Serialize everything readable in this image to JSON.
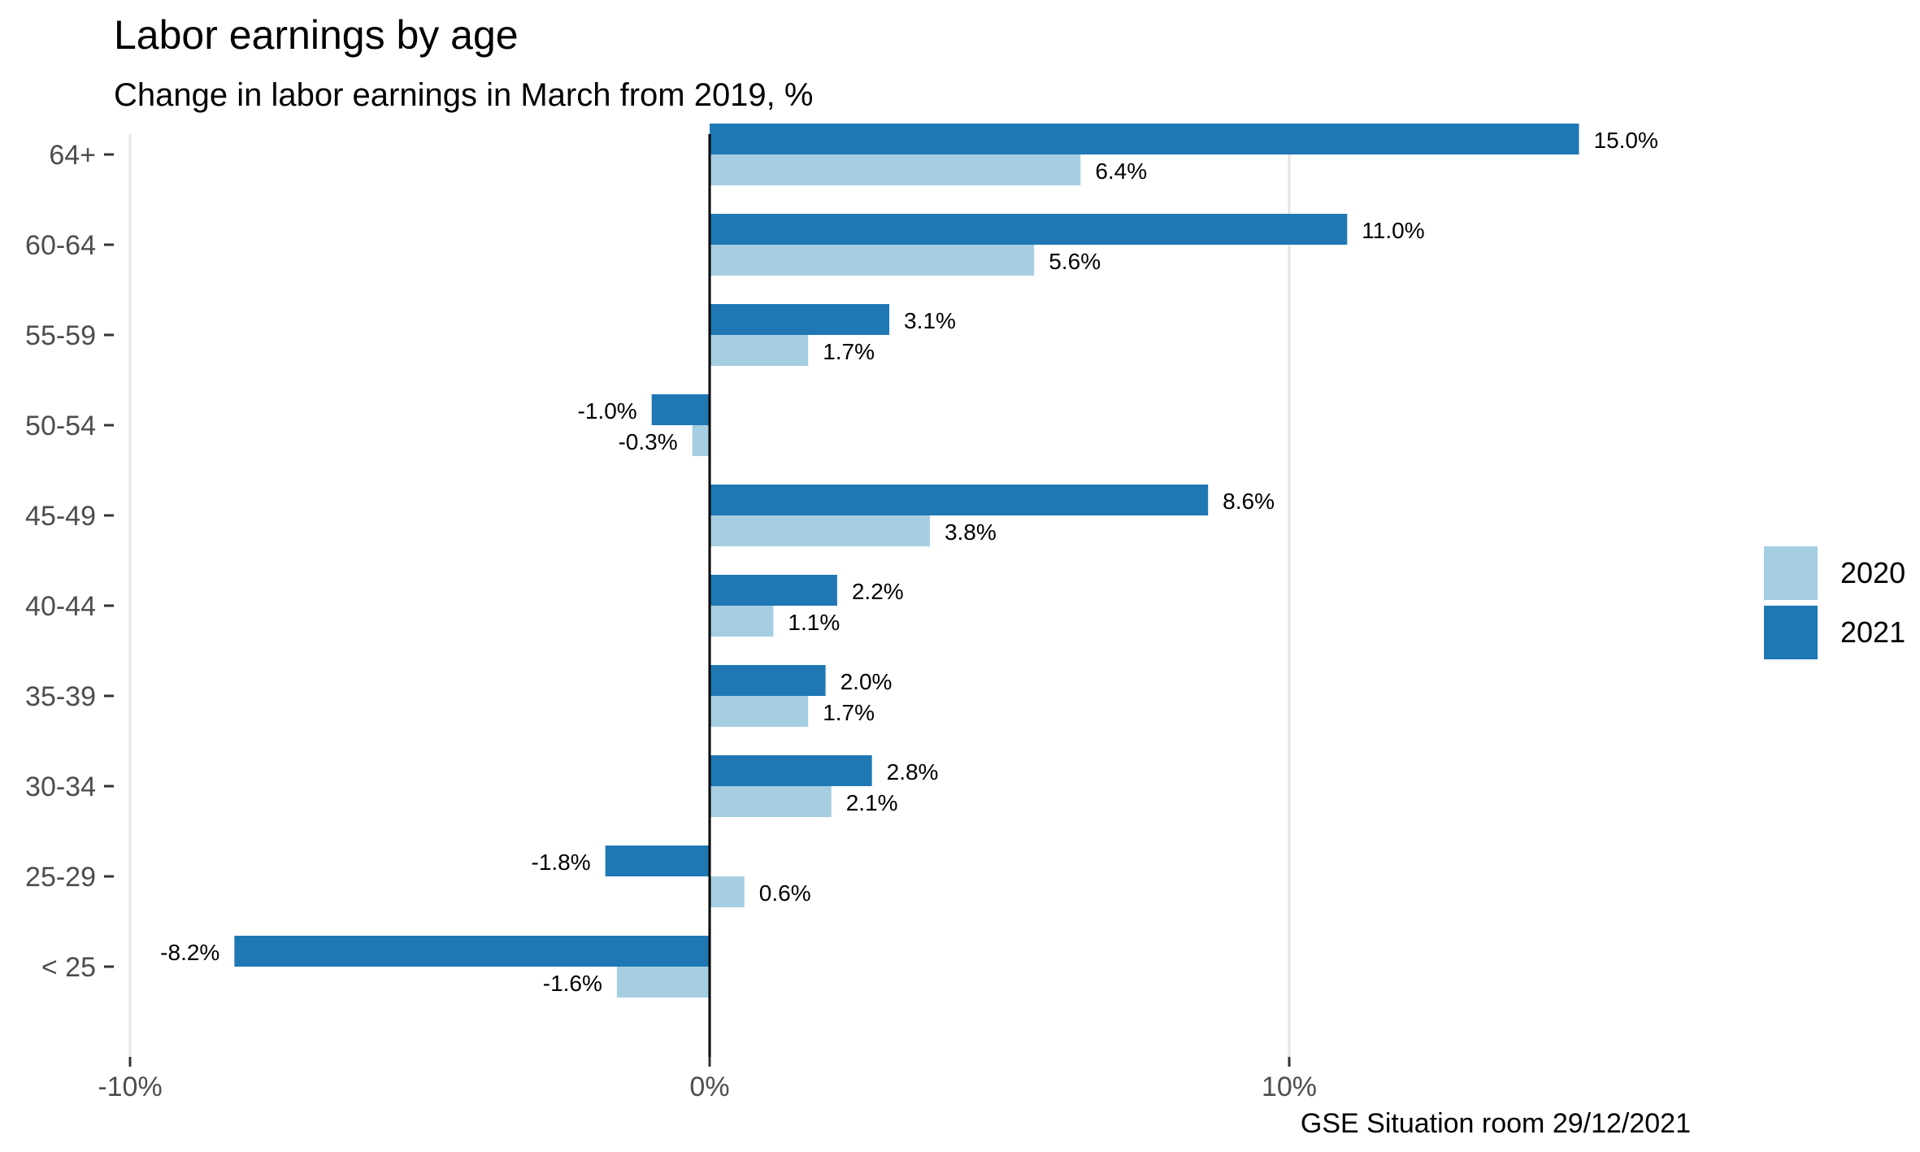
{
  "chart_data": {
    "type": "bar",
    "orientation": "horizontal",
    "title": "Labor earnings by age",
    "subtitle": "Change in labor earnings in March from 2019, %",
    "caption": "GSE Situation room 29/12/2021",
    "xlabel": "",
    "ylabel": "",
    "xlim": [
      -10,
      20
    ],
    "x_ticks": [
      -10,
      0,
      10
    ],
    "x_tick_labels": [
      "-10%",
      "0%",
      "10%"
    ],
    "grid": "vertical-major",
    "legend_position": "right",
    "categories": [
      "64+",
      "60-64",
      "55-59",
      "50-54",
      "45-49",
      "40-44",
      "35-39",
      "30-34",
      "25-29",
      "< 25"
    ],
    "series": [
      {
        "name": "2021",
        "color": "#1f78b4",
        "values": [
          15.0,
          11.0,
          3.1,
          -1.0,
          8.6,
          2.2,
          2.0,
          2.8,
          -1.8,
          -8.2
        ],
        "labels": [
          "15.0%",
          "11.0%",
          "3.1%",
          "-1.0%",
          "8.6%",
          "2.2%",
          "2.0%",
          "2.8%",
          "-1.8%",
          "-8.2%"
        ]
      },
      {
        "name": "2020",
        "color": "#a6cee3",
        "values": [
          6.4,
          5.6,
          1.7,
          -0.3,
          3.8,
          1.1,
          1.7,
          2.1,
          0.6,
          -1.6
        ],
        "labels": [
          "6.4%",
          "5.6%",
          "1.7%",
          "-0.3%",
          "3.8%",
          "1.1%",
          "1.7%",
          "2.1%",
          "0.6%",
          "-1.6%"
        ]
      }
    ],
    "legend": [
      {
        "name": "2020",
        "color": "#a6cee3"
      },
      {
        "name": "2021",
        "color": "#1f78b4"
      }
    ]
  }
}
